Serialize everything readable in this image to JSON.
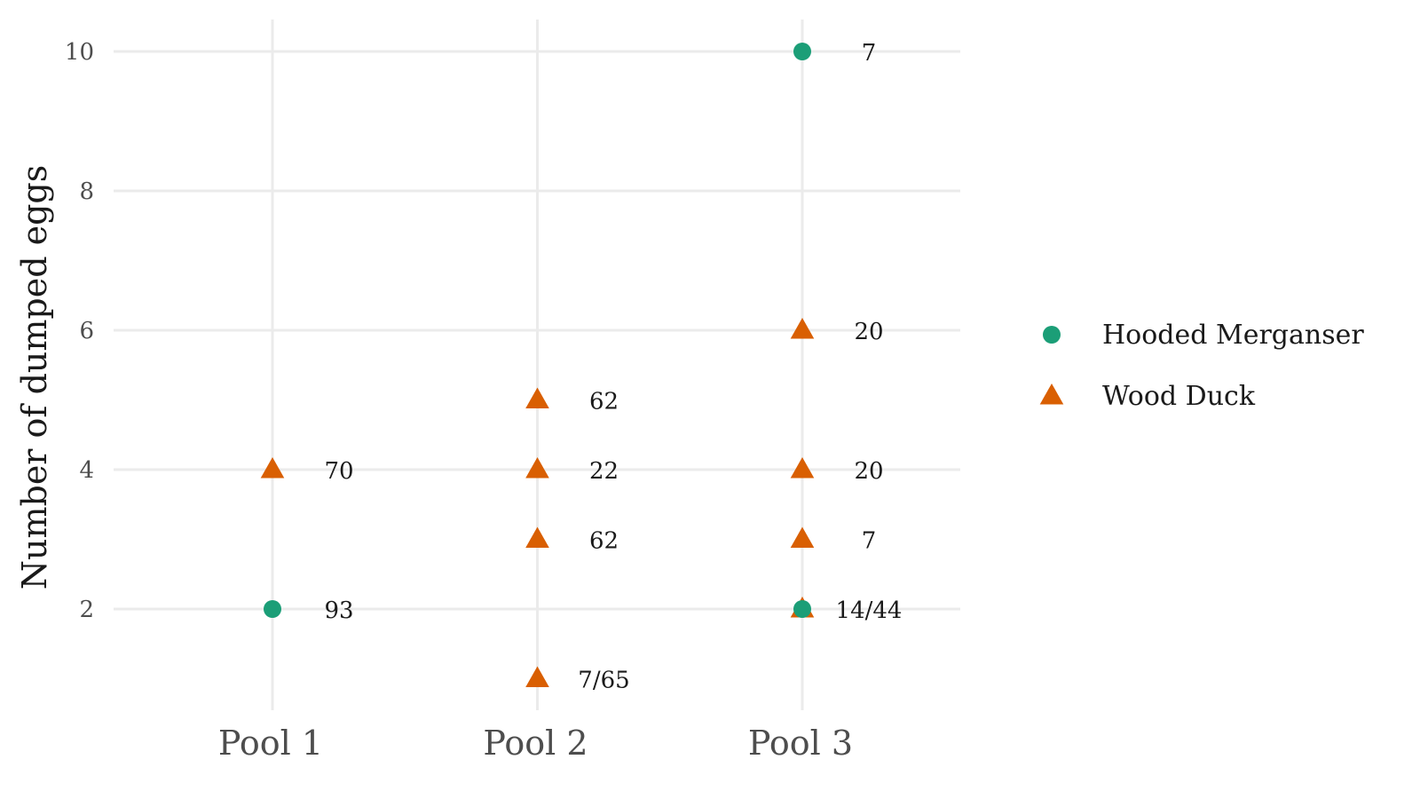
{
  "chart_data": {
    "type": "scatter",
    "title": "",
    "xlabel": "",
    "ylabel": "Number of dumped eggs",
    "categories": [
      "Pool 1",
      "Pool 2",
      "Pool 3"
    ],
    "yticks": [
      2,
      4,
      6,
      8,
      10
    ],
    "ylim": [
      0.6,
      10.5
    ],
    "grid": true,
    "legend_position": "right",
    "series": [
      {
        "name": "Hooded Merganser",
        "marker": "circle",
        "color": "#1b9e77",
        "points": [
          {
            "x": "Pool 1",
            "y": 2,
            "label": "93"
          },
          {
            "x": "Pool 3",
            "y": 10,
            "label": "7"
          },
          {
            "x": "Pool 3",
            "y": 2,
            "label": "14/44"
          }
        ]
      },
      {
        "name": "Wood Duck",
        "marker": "triangle",
        "color": "#d95f02",
        "points": [
          {
            "x": "Pool 1",
            "y": 4,
            "label": "70"
          },
          {
            "x": "Pool 2",
            "y": 5,
            "label": "62"
          },
          {
            "x": "Pool 2",
            "y": 4,
            "label": "22"
          },
          {
            "x": "Pool 2",
            "y": 3,
            "label": "62"
          },
          {
            "x": "Pool 2",
            "y": 1,
            "label": "7/65"
          },
          {
            "x": "Pool 3",
            "y": 6,
            "label": "20"
          },
          {
            "x": "Pool 3",
            "y": 4,
            "label": "20"
          },
          {
            "x": "Pool 3",
            "y": 3,
            "label": "7"
          },
          {
            "x": "Pool 3",
            "y": 2,
            "label": ""
          }
        ]
      }
    ]
  }
}
